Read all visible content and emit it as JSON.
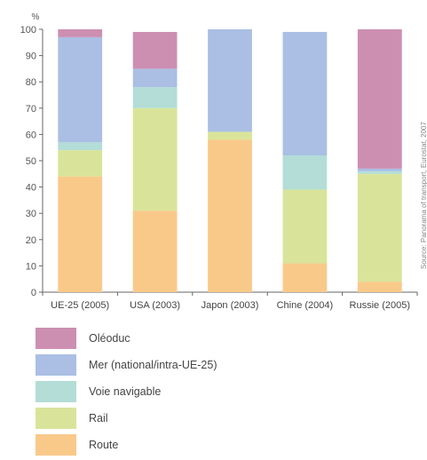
{
  "chart_data": {
    "type": "bar",
    "stacked": true,
    "ylabel": "%",
    "ylim": [
      0,
      100
    ],
    "yticks": [
      0,
      10,
      20,
      30,
      40,
      50,
      60,
      70,
      80,
      90,
      100
    ],
    "grid": false,
    "legend_position": "bottom",
    "source_note": "Source: Panorama of transport, Eurostat, 2007",
    "categories": [
      "UE-25 (2005)",
      "USA (2003)",
      "Japon (2003)",
      "Chine (2004)",
      "Russie (2005)"
    ],
    "series": [
      {
        "name": "Route",
        "color": "#f9c98a",
        "values": [
          44,
          31,
          58,
          11,
          4
        ]
      },
      {
        "name": "Rail",
        "color": "#d9e49a",
        "values": [
          10,
          39,
          3,
          28,
          41
        ]
      },
      {
        "name": "Voie navigable",
        "color": "#b3ddd6",
        "values": [
          3,
          8,
          0,
          13,
          1
        ]
      },
      {
        "name": "Mer (national/intra-UE-25)",
        "color": "#aabfe3",
        "values": [
          40,
          7,
          39,
          47,
          1
        ]
      },
      {
        "name": "Oléoduc",
        "color": "#cc8fb2",
        "values": [
          3,
          14,
          0,
          0,
          53
        ]
      }
    ]
  }
}
